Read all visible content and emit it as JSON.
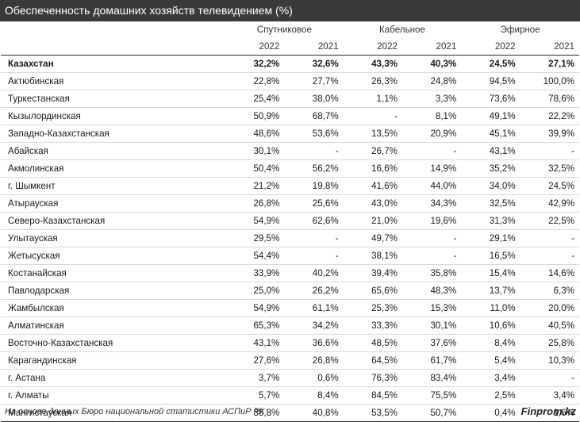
{
  "title": "Обеспеченность домашних хозяйств телевидением (%)",
  "groups": [
    "Спутниковое",
    "Кабельное",
    "Эфирное"
  ],
  "years": [
    "2022",
    "2021",
    "2022",
    "2021",
    "2022",
    "2021"
  ],
  "footer": {
    "source": "На основе данных Бюро национальной статистики АСПиР РК",
    "brand": "Finprom.kz"
  },
  "chart_data": {
    "type": "table",
    "title": "Обеспеченность домашних хозяйств телевидением (%)",
    "columns": [
      {
        "group": "Спутниковое",
        "year": "2022"
      },
      {
        "group": "Спутниковое",
        "year": "2021"
      },
      {
        "group": "Кабельное",
        "year": "2022"
      },
      {
        "group": "Кабельное",
        "year": "2021"
      },
      {
        "group": "Эфирное",
        "year": "2022"
      },
      {
        "group": "Эфирное",
        "year": "2021"
      }
    ],
    "rows": [
      {
        "name": "Казахстан",
        "values": [
          "32,2%",
          "32,6%",
          "43,3%",
          "40,3%",
          "24,5%",
          "27,1%"
        ],
        "bold": true
      },
      {
        "name": "Актюбинская",
        "values": [
          "22,8%",
          "27,7%",
          "26,3%",
          "24,8%",
          "94,5%",
          "100,0%"
        ]
      },
      {
        "name": "Туркестанская",
        "values": [
          "25,4%",
          "38,0%",
          "1,1%",
          "3,3%",
          "73,6%",
          "78,6%"
        ]
      },
      {
        "name": "Кызылординская",
        "values": [
          "50,9%",
          "68,7%",
          "-",
          "8,1%",
          "49,1%",
          "22,2%"
        ]
      },
      {
        "name": "Западно-Казахстанская",
        "values": [
          "48,6%",
          "53,6%",
          "13,5%",
          "20,9%",
          "45,1%",
          "39,9%"
        ]
      },
      {
        "name": "Абайская",
        "values": [
          "30,1%",
          "-",
          "26,7%",
          "-",
          "43,1%",
          "-"
        ]
      },
      {
        "name": "Акмолинская",
        "values": [
          "50,4%",
          "56,2%",
          "16,6%",
          "14,9%",
          "35,2%",
          "32,5%"
        ]
      },
      {
        "name": "г. Шымкент",
        "values": [
          "21,2%",
          "19,8%",
          "41,6%",
          "44,0%",
          "34,0%",
          "24,5%"
        ]
      },
      {
        "name": "Атырауская",
        "values": [
          "26,8%",
          "25,6%",
          "43,0%",
          "34,3%",
          "32,5%",
          "42,9%"
        ]
      },
      {
        "name": "Северо-Казахстанская",
        "values": [
          "54,9%",
          "62,6%",
          "21,0%",
          "19,6%",
          "31,3%",
          "22,5%"
        ]
      },
      {
        "name": "Улытауская",
        "values": [
          "29,5%",
          "-",
          "49,7%",
          "-",
          "29,1%",
          "-"
        ]
      },
      {
        "name": "Жетысуская",
        "values": [
          "54,4%",
          "-",
          "38,1%",
          "-",
          "16,5%",
          "-"
        ]
      },
      {
        "name": "Костанайская",
        "values": [
          "33,9%",
          "40,2%",
          "39,4%",
          "35,8%",
          "15,4%",
          "14,6%"
        ]
      },
      {
        "name": "Павлодарская",
        "values": [
          "25,0%",
          "26,2%",
          "65,6%",
          "48,3%",
          "13,7%",
          "6,3%"
        ]
      },
      {
        "name": "Жамбылская",
        "values": [
          "54,9%",
          "61,1%",
          "25,3%",
          "15,3%",
          "11,0%",
          "20,0%"
        ]
      },
      {
        "name": "Алматинская",
        "values": [
          "65,3%",
          "34,2%",
          "33,3%",
          "30,1%",
          "10,6%",
          "40,5%"
        ]
      },
      {
        "name": "Восточно-Казахстанская",
        "values": [
          "43,1%",
          "36,6%",
          "48,5%",
          "37,6%",
          "8,4%",
          "25,8%"
        ]
      },
      {
        "name": "Карагандинская",
        "values": [
          "27,6%",
          "26,8%",
          "64,5%",
          "61,7%",
          "5,4%",
          "10,3%"
        ]
      },
      {
        "name": "г. Астана",
        "values": [
          "3,7%",
          "0,6%",
          "76,3%",
          "83,4%",
          "3,4%",
          "-"
        ]
      },
      {
        "name": "г. Алматы",
        "values": [
          "5,7%",
          "8,4%",
          "84,5%",
          "75,5%",
          "2,5%",
          "3,4%"
        ]
      },
      {
        "name": "Мангистауская",
        "values": [
          "38,8%",
          "40,8%",
          "53,5%",
          "50,7%",
          "0,4%",
          "1,6%"
        ]
      }
    ]
  }
}
